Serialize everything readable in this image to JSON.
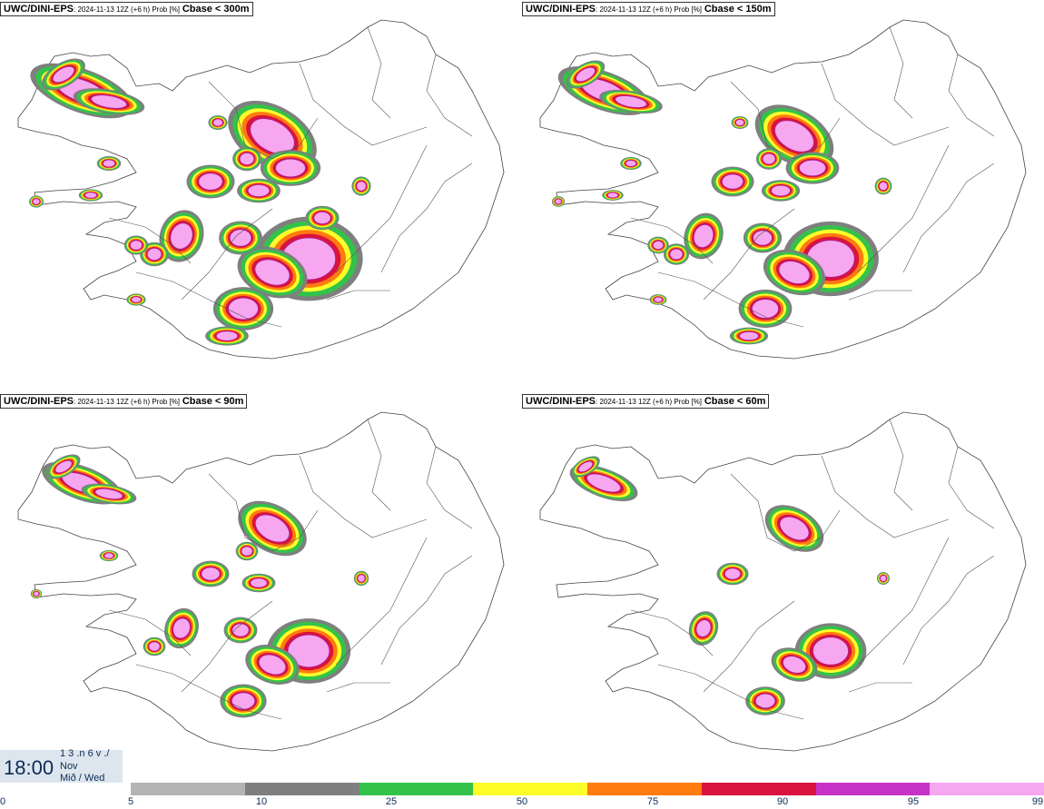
{
  "panels": [
    {
      "model": "UWC/DINI-EPS",
      "meta": ": 2024-11-13 12Z (+6 h) Prob [%]",
      "threshold": "Cbase < 300m"
    },
    {
      "model": "UWC/DINI-EPS",
      "meta": ": 2024-11-13 12Z (+6 h) Prob [%]",
      "threshold": "Cbase < 150m"
    },
    {
      "model": "UWC/DINI-EPS",
      "meta": ": 2024-11-13 12Z (+6 h) Prob [%]",
      "threshold": "Cbase < 90m"
    },
    {
      "model": "UWC/DINI-EPS",
      "meta": ": 2024-11-13 12Z (+6 h) Prob [%]",
      "threshold": "Cbase < 60m"
    }
  ],
  "valid_time": {
    "time": "18:00",
    "line1": "1 3 .n 6 v ./",
    "line2": "Nov",
    "line3": "Mið / Wed"
  },
  "legend": {
    "ticks": [
      "0",
      "5",
      "10",
      "25",
      "50",
      "75",
      "90",
      "95",
      "99"
    ],
    "colors": [
      "#b4b4b4",
      "#7f7f7f",
      "#33c24a",
      "#fdfd2a",
      "#ff7b0e",
      "#d9133d",
      "#c733c7",
      "#f7a6f0"
    ]
  }
}
